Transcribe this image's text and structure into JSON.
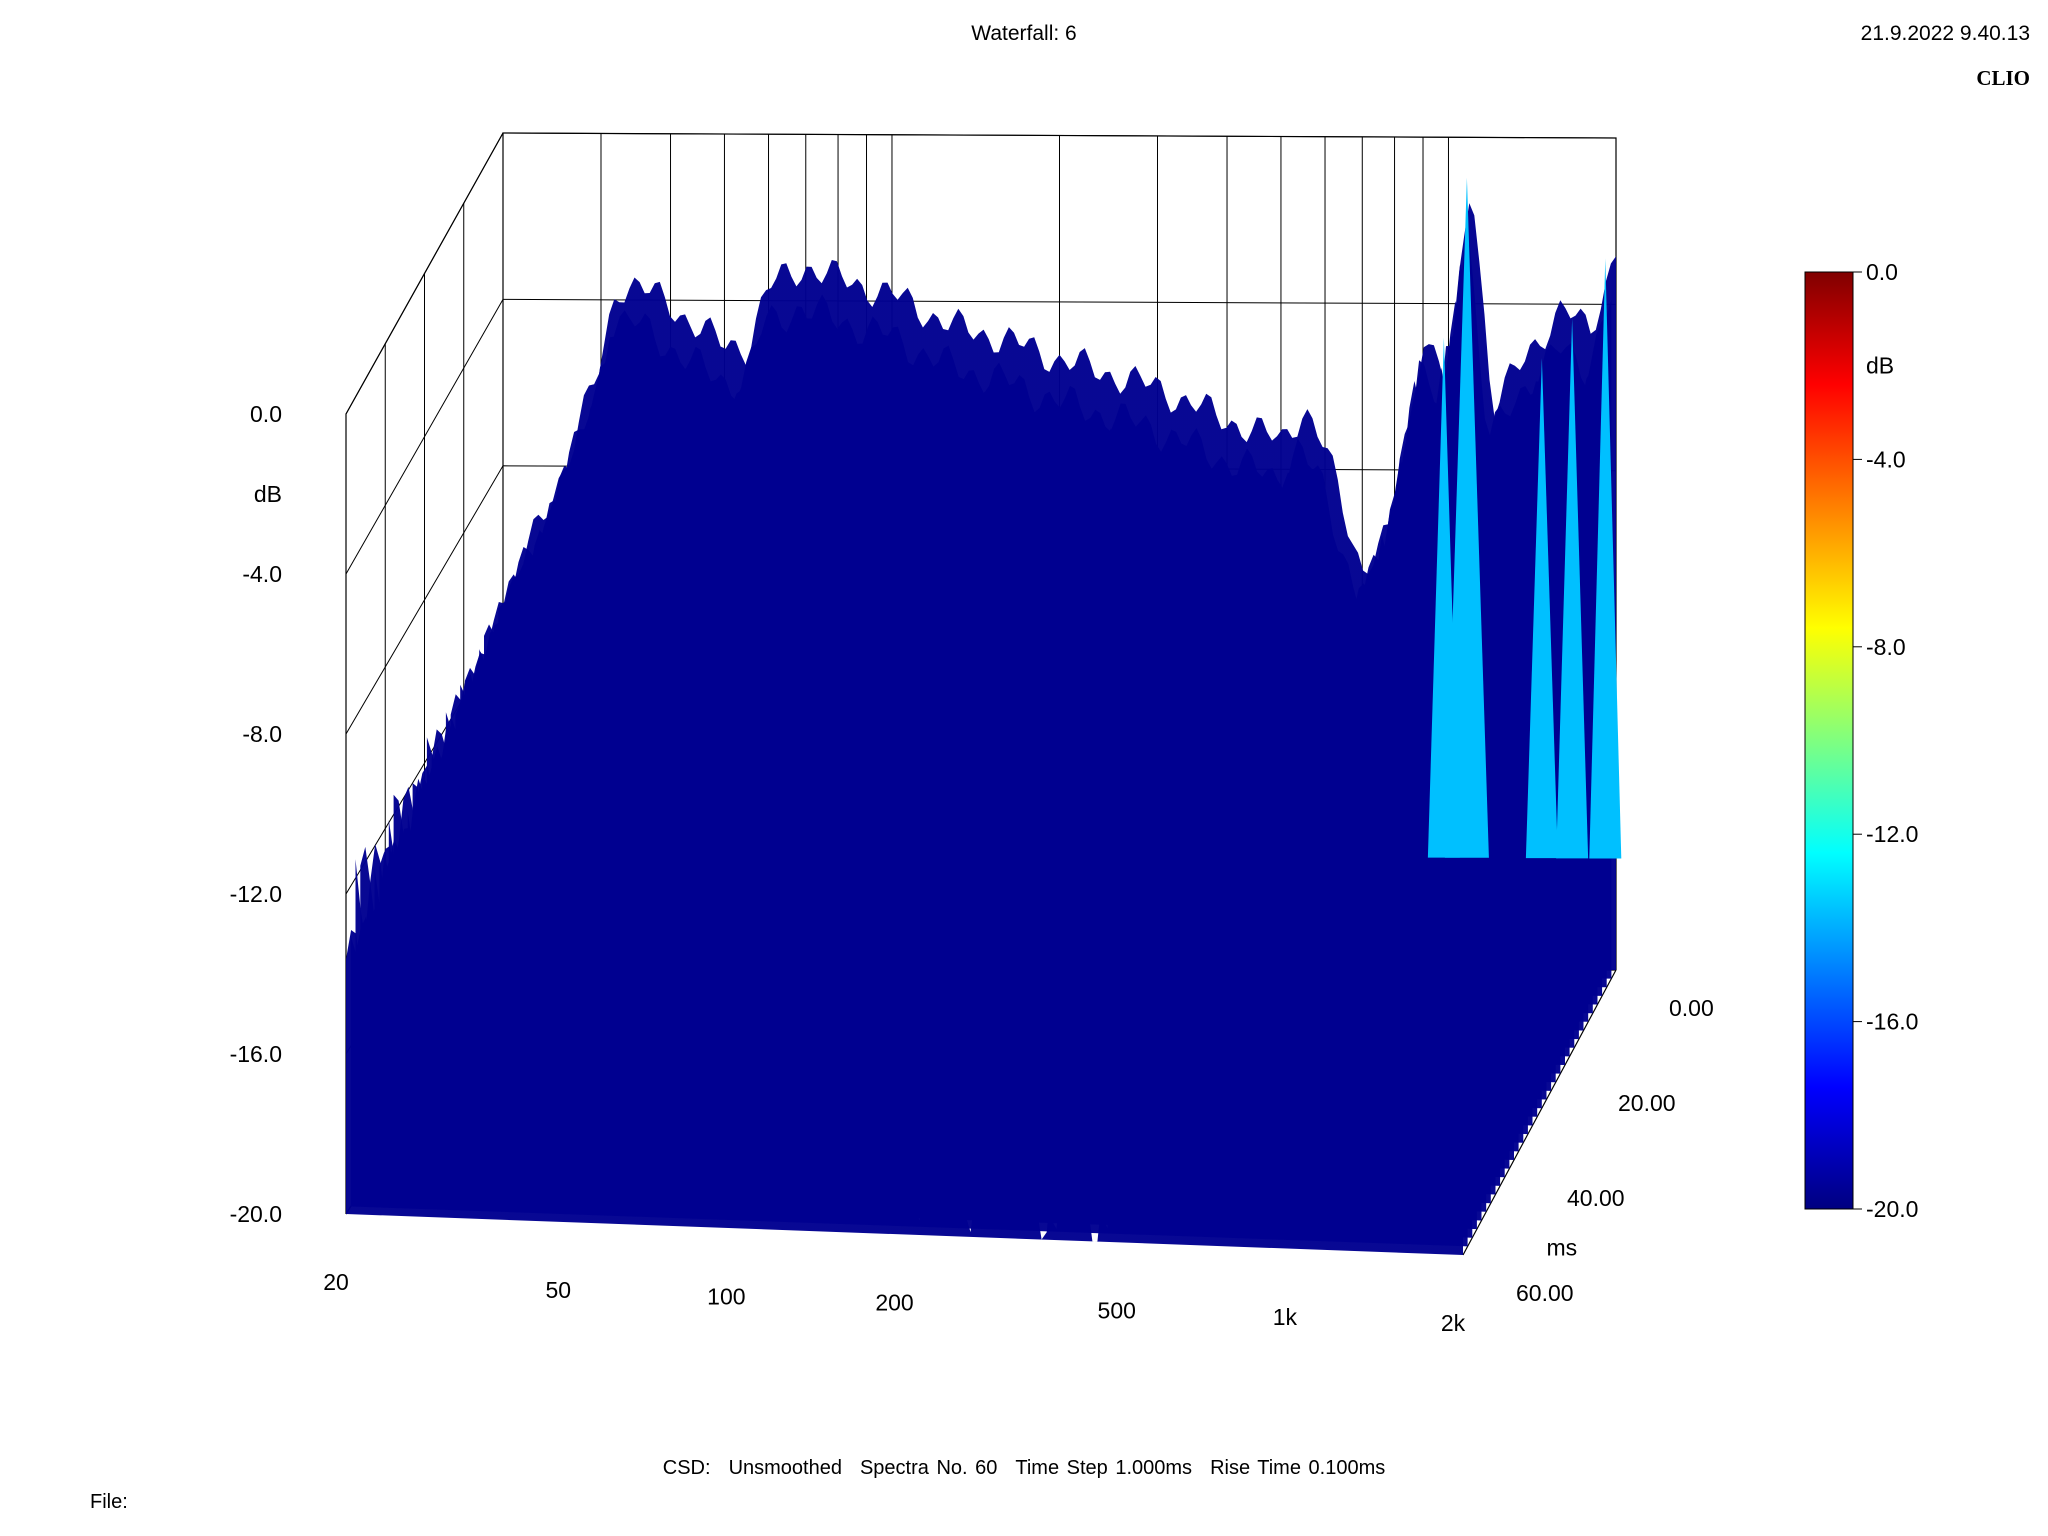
{
  "header": {
    "title": "Waterfall: 6",
    "datetime": "21.9.2022 9.40.13",
    "brand": "CLIO"
  },
  "footer": {
    "csd": "CSD:",
    "smoothing": "Unsmoothed",
    "spectra": "Spectra No. 60",
    "time_step": "Time Step 1.000ms",
    "rise_time": "Rise Time 0.100ms",
    "file_label": "File:"
  },
  "colors": {
    "colormap": [
      "#000080",
      "#0000ff",
      "#00ffff",
      "#ffff00",
      "#ff0000",
      "#800000"
    ]
  },
  "chart_data": {
    "type": "waterfall",
    "x_axis": {
      "scale": "log",
      "range": [
        20,
        2000
      ],
      "ticks": [
        20,
        50,
        100,
        200,
        500,
        1000,
        2000
      ],
      "tick_labels": [
        "20",
        "50",
        "100",
        "200",
        "500",
        "1k",
        "2k"
      ],
      "label": ""
    },
    "y_axis": {
      "label": "dB",
      "range": [
        -20,
        0
      ],
      "tick_labels": [
        "0.0",
        "-4.0",
        "-8.0",
        "-12.0",
        "-16.0",
        "-20.0"
      ],
      "ticks": [
        0,
        -4,
        -8,
        -12,
        -16,
        -20
      ]
    },
    "z_axis": {
      "label": "ms",
      "range": [
        0,
        60
      ],
      "tick_labels": [
        "0.00",
        "20.00",
        "40.00",
        "60.00"
      ],
      "ticks": [
        0,
        20,
        40,
        60
      ]
    },
    "colorbar": {
      "label": "dB",
      "range": [
        -20,
        0
      ],
      "tick_labels": [
        "0.0",
        "-4.0",
        "-8.0",
        "-12.0",
        "-16.0",
        "-20.0"
      ]
    },
    "front_slice_0ms": [
      {
        "f": 20,
        "db": -13.0
      },
      {
        "f": 23,
        "db": -13.5
      },
      {
        "f": 27,
        "db": -14.0
      },
      {
        "f": 30,
        "db": -13.8
      },
      {
        "f": 33,
        "db": -14.2
      },
      {
        "f": 36,
        "db": -15.0
      },
      {
        "f": 40,
        "db": -16.0
      },
      {
        "f": 45,
        "db": -15.8
      },
      {
        "f": 50,
        "db": -15.5
      },
      {
        "f": 60,
        "db": -15.8
      },
      {
        "f": 70,
        "db": -16.0
      },
      {
        "f": 80,
        "db": -16.2
      },
      {
        "f": 100,
        "db": -16.5
      },
      {
        "f": 130,
        "db": -17.0
      },
      {
        "f": 160,
        "db": -17.5
      },
      {
        "f": 200,
        "db": -18.0
      },
      {
        "f": 300,
        "db": -18.5
      },
      {
        "f": 400,
        "db": -18.8
      },
      {
        "f": 500,
        "db": -18.5
      },
      {
        "f": 600,
        "db": -17.8
      },
      {
        "f": 700,
        "db": -17.0
      },
      {
        "f": 800,
        "db": -16.0
      },
      {
        "f": 900,
        "db": -15.0
      },
      {
        "f": 1000,
        "db": -14.5
      },
      {
        "f": 1200,
        "db": -15.5
      },
      {
        "f": 1500,
        "db": -16.0
      },
      {
        "f": 2000,
        "db": -16.5
      }
    ],
    "back_slice_peak": [
      {
        "f": 20,
        "db": -11.0
      },
      {
        "f": 25,
        "db": -8.0
      },
      {
        "f": 30,
        "db": -5.0
      },
      {
        "f": 32,
        "db": -3.0
      },
      {
        "f": 35,
        "db": -3.0
      },
      {
        "f": 40,
        "db": -3.5
      },
      {
        "f": 50,
        "db": -4.5
      },
      {
        "f": 55,
        "db": -4.5
      },
      {
        "f": 60,
        "db": -3.0
      },
      {
        "f": 70,
        "db": -2.5
      },
      {
        "f": 80,
        "db": -2.8
      },
      {
        "f": 100,
        "db": -3.2
      },
      {
        "f": 130,
        "db": -4.0
      },
      {
        "f": 160,
        "db": -4.3
      },
      {
        "f": 200,
        "db": -4.8
      },
      {
        "f": 300,
        "db": -5.5
      },
      {
        "f": 400,
        "db": -6.3
      },
      {
        "f": 500,
        "db": -6.8
      },
      {
        "f": 550,
        "db": -6.0
      },
      {
        "f": 600,
        "db": -7.0
      },
      {
        "f": 700,
        "db": -10.0
      },
      {
        "f": 800,
        "db": -9.0
      },
      {
        "f": 900,
        "db": -4.0
      },
      {
        "f": 1000,
        "db": -5.5
      },
      {
        "f": 1100,
        "db": 0.0
      },
      {
        "f": 1200,
        "db": -6.0
      },
      {
        "f": 1400,
        "db": -4.5
      },
      {
        "f": 1600,
        "db": -3.5
      },
      {
        "f": 1800,
        "db": -4.0
      },
      {
        "f": 2000,
        "db": -2.0
      }
    ]
  }
}
